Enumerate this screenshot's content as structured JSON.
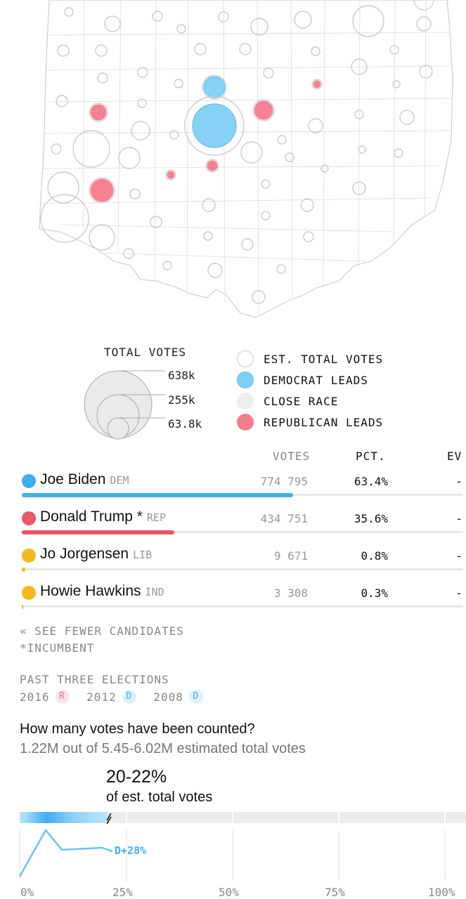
{
  "legend": {
    "size_title": "TOTAL VOTES",
    "sizes": [
      "638k",
      "255k",
      "63.8k"
    ],
    "keys": [
      {
        "label": "EST. TOTAL VOTES",
        "fill": "#ffffff",
        "stroke": "#cccccc"
      },
      {
        "label": "DEMOCRAT LEADS",
        "fill": "#7fd0f5",
        "stroke": "#5cc0f0"
      },
      {
        "label": "CLOSE RACE",
        "fill": "#eeeeee",
        "stroke": "#eeeeee"
      },
      {
        "label": "REPUBLICAN LEADS",
        "fill": "#f57a8c",
        "stroke": "#f08595"
      }
    ]
  },
  "results": {
    "columns": {
      "votes": "VOTES",
      "pct": "PCT.",
      "ev": "EV"
    },
    "candidates": [
      {
        "name": "Joe Biden",
        "party": "DEM",
        "votes": "774 795",
        "pct": "63.4%",
        "ev": "-",
        "share": 0.634,
        "color": "#3eb0f0"
      },
      {
        "name": "Donald Trump *",
        "party": "REP",
        "votes": "434 751",
        "pct": "35.6%",
        "ev": "-",
        "share": 0.356,
        "color": "#ee5567"
      },
      {
        "name": "Jo Jorgensen",
        "party": "LIB",
        "votes": "9 671",
        "pct": "0.8%",
        "ev": "-",
        "share": 0.008,
        "color": "#f5b820"
      },
      {
        "name": "Howie Hawkins",
        "party": "IND",
        "votes": "3 308",
        "pct": "0.3%",
        "ev": "-",
        "share": 0.003,
        "color": "#f5b820"
      }
    ],
    "see_fewer": "« SEE FEWER CANDIDATES",
    "incumbent_note": "*INCUMBENT"
  },
  "past": {
    "title": "PAST THREE ELECTIONS",
    "items": [
      {
        "year": "2016",
        "party": "R",
        "bg": "#fbe3e6",
        "fg": "#d88090"
      },
      {
        "year": "2012",
        "party": "D",
        "bg": "#dff0fb",
        "fg": "#4aa8dc"
      },
      {
        "year": "2008",
        "party": "D",
        "bg": "#dff0fb",
        "fg": "#4aa8dc"
      }
    ]
  },
  "counted": {
    "question": "How many votes have been counted?",
    "subtitle": "1.22M out of 5.45-6.02M estimated total votes",
    "pct_range": "20-22%",
    "pct_caption": "of est. total votes",
    "progress_fraction": 0.21,
    "margin_label": "D+28%",
    "margin_color": "#3eb0f0",
    "axis_ticks": [
      "0%",
      "25%",
      "50%",
      "75%",
      "100%"
    ]
  }
}
